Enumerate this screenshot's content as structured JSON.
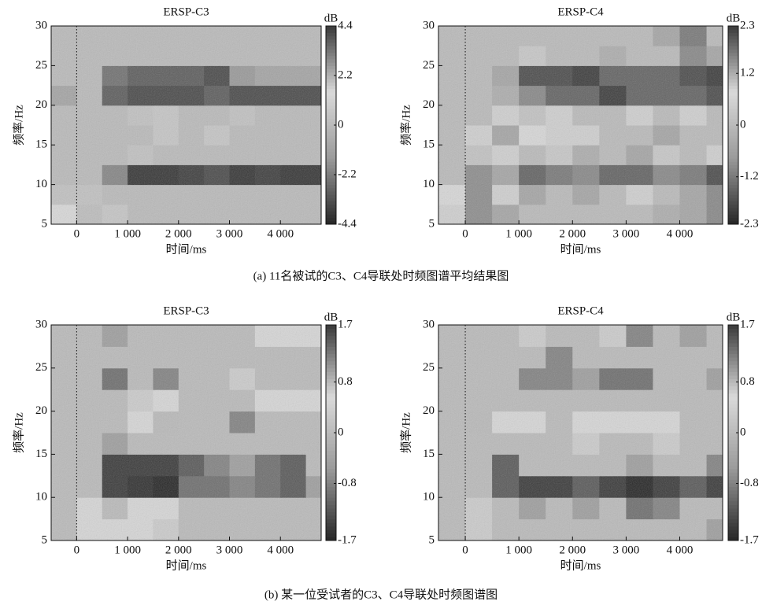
{
  "chart_data": [
    {
      "type": "heatmap",
      "title": "ERSP-C3",
      "xlabel": "时间/ms",
      "ylabel": "频率/Hz",
      "clabel": "dB",
      "xlim": [
        -500,
        4800
      ],
      "ylim": [
        5,
        30
      ],
      "xticks": [
        0,
        {
          "value": 1000,
          "label": "1 000"
        },
        {
          "value": 2000,
          "label": "2 000"
        },
        {
          "value": 3000,
          "label": "3 000"
        },
        {
          "value": 4000,
          "label": "4 000"
        }
      ],
      "yticks": [
        5,
        10,
        15,
        20,
        25,
        30
      ],
      "xbins": [
        -500,
        0,
        500,
        1000,
        1500,
        2000,
        2500,
        3000,
        3500,
        4000,
        4500,
        4800
      ],
      "ybins": [
        5,
        7.5,
        10,
        12.5,
        15,
        17.5,
        20,
        22.5,
        25,
        27.5,
        30
      ],
      "z": [
        [
          1.5,
          2,
          0.5,
          0,
          0,
          0,
          0,
          0,
          0,
          0,
          0
        ],
        [
          0.3,
          0.3,
          0,
          0,
          0,
          0,
          0,
          0,
          0,
          0,
          0
        ],
        [
          0,
          0,
          -2,
          -4,
          -4,
          -3.8,
          -3.5,
          -4,
          -3.8,
          -4,
          -4
        ],
        [
          0,
          0,
          0,
          0.3,
          0,
          0,
          0,
          0,
          0,
          0,
          0
        ],
        [
          0,
          0,
          0,
          0,
          0.5,
          0,
          0.5,
          0,
          0,
          0,
          0
        ],
        [
          0,
          0,
          0,
          0.3,
          0.5,
          0,
          0,
          0.3,
          0,
          0,
          0
        ],
        [
          -1,
          0,
          -3,
          -3.5,
          -3.5,
          -3.5,
          -3,
          -3.5,
          -3.5,
          -3.5,
          -3.5
        ],
        [
          0,
          0,
          -2.5,
          -3,
          -3,
          -3,
          -3.5,
          -1.5,
          -1,
          -1,
          -1
        ],
        [
          0,
          0,
          0,
          0,
          0,
          0,
          0,
          0,
          0,
          0,
          0
        ],
        [
          0,
          0,
          0,
          0,
          0,
          0,
          0,
          0,
          0,
          0,
          0
        ]
      ],
      "clim": [
        -4.4,
        4.4
      ],
      "cticks": [
        -4.4,
        -2.2,
        0,
        2.2,
        4.4
      ],
      "colormap": [
        "#262626",
        "#9a9a9a",
        "#dadada",
        "#3a3a3a"
      ],
      "marker_x": 0
    },
    {
      "type": "heatmap",
      "title": "ERSP-C4",
      "xlabel": "时间/ms",
      "ylabel": "频率/Hz",
      "clabel": "dB",
      "xlim": [
        -500,
        4800
      ],
      "ylim": [
        5,
        30
      ],
      "xticks": [
        0,
        {
          "value": 1000,
          "label": "1 000"
        },
        {
          "value": 2000,
          "label": "2 000"
        },
        {
          "value": 3000,
          "label": "3 000"
        },
        {
          "value": 4000,
          "label": "4 000"
        }
      ],
      "yticks": [
        5,
        10,
        15,
        20,
        25,
        30
      ],
      "xbins": [
        -500,
        0,
        500,
        1000,
        1500,
        2000,
        2500,
        3000,
        3500,
        4000,
        4500,
        4800
      ],
      "ybins": [
        5,
        7.5,
        10,
        12.5,
        15,
        17.5,
        20,
        22.5,
        25,
        27.5,
        30
      ],
      "z": [
        [
          0.5,
          1.5,
          -0.5,
          0,
          0,
          0,
          0,
          0,
          -0.3,
          -0.5,
          -1
        ],
        [
          0.8,
          1.5,
          0.5,
          -0.5,
          0,
          -0.5,
          0,
          0.5,
          0,
          -0.5,
          -1
        ],
        [
          0,
          1.5,
          -0.5,
          -1.5,
          -1.2,
          -1,
          -1.5,
          -1.5,
          -1,
          -1.2,
          -1.8
        ],
        [
          0,
          1,
          0.5,
          0,
          0.3,
          -0.3,
          0,
          -0.5,
          0.3,
          0,
          0.5
        ],
        [
          0,
          0.5,
          -0.5,
          0.8,
          0.5,
          0.5,
          0,
          0,
          -0.5,
          0,
          0
        ],
        [
          0,
          0,
          0.5,
          1,
          0.5,
          0,
          0,
          0.5,
          0,
          0.5,
          0
        ],
        [
          0,
          0,
          -0.3,
          -1,
          -1.5,
          -1.5,
          -2,
          -1.5,
          -1.5,
          -1.5,
          -1.8
        ],
        [
          0,
          0,
          -0.5,
          -1.8,
          -1.8,
          -2,
          -1.5,
          -1.5,
          -1.5,
          -1.8,
          -2
        ],
        [
          0,
          0,
          0,
          0.3,
          0,
          0,
          -0.3,
          0,
          0,
          -1,
          -0.5
        ],
        [
          0,
          0,
          0,
          0,
          0,
          0,
          0,
          0,
          -0.5,
          -1.2,
          0
        ]
      ],
      "clim": [
        -2.3,
        2.3
      ],
      "cticks": [
        -2.3,
        -1.2,
        0,
        1.2,
        2.3
      ],
      "colormap": [
        "#262626",
        "#9a9a9a",
        "#dadada",
        "#3a3a3a"
      ],
      "marker_x": 0
    },
    {
      "type": "heatmap",
      "title": "ERSP-C3",
      "xlabel": "时间/ms",
      "ylabel": "频率/Hz",
      "clabel": "dB",
      "xlim": [
        -500,
        4800
      ],
      "ylim": [
        5,
        30
      ],
      "xticks": [
        0,
        {
          "value": 1000,
          "label": "1 000"
        },
        {
          "value": 2000,
          "label": "2 000"
        },
        {
          "value": 3000,
          "label": "3 000"
        },
        {
          "value": 4000,
          "label": "4 000"
        }
      ],
      "yticks": [
        5,
        10,
        15,
        20,
        25,
        30
      ],
      "xbins": [
        -500,
        0,
        500,
        1000,
        1500,
        2000,
        2500,
        3000,
        3500,
        4000,
        4500,
        4800
      ],
      "ybins": [
        5,
        7.5,
        10,
        12.5,
        15,
        17.5,
        20,
        22.5,
        25,
        27.5,
        30
      ],
      "z": [
        [
          0,
          0.5,
          0.5,
          0.5,
          0.3,
          0,
          0,
          0,
          0,
          0,
          0
        ],
        [
          0,
          0.5,
          0,
          0.5,
          0.5,
          0,
          0,
          0,
          0,
          0,
          0
        ],
        [
          0,
          0,
          -1.5,
          -1.6,
          -1.7,
          -1,
          -1,
          -0.8,
          -1,
          -1.2,
          -0.5
        ],
        [
          0,
          0,
          -1.5,
          -1.5,
          -1.5,
          -1.2,
          -0.8,
          -0.5,
          -1,
          -1.2,
          0
        ],
        [
          0,
          0,
          -0.5,
          0,
          0,
          0,
          0,
          0,
          0,
          0,
          0
        ],
        [
          0,
          0,
          0,
          0.5,
          0.8,
          0,
          0,
          -0.8,
          0,
          0,
          0
        ],
        [
          0,
          0,
          0,
          0.3,
          0.5,
          0,
          0,
          0,
          0.5,
          0.5,
          0.5
        ],
        [
          0,
          0,
          -1,
          0,
          -0.8,
          0,
          0,
          0.3,
          0,
          0,
          0
        ],
        [
          0,
          0,
          0,
          0,
          0,
          0,
          0,
          0,
          0,
          0,
          0
        ],
        [
          0,
          0,
          -0.5,
          0,
          0,
          0,
          0,
          0,
          0.5,
          0.5,
          0.5
        ]
      ],
      "clim": [
        -1.7,
        1.7
      ],
      "cticks": [
        -1.7,
        -0.8,
        0,
        0.8,
        1.7
      ],
      "colormap": [
        "#262626",
        "#9a9a9a",
        "#dadada",
        "#3a3a3a"
      ],
      "marker_x": 0
    },
    {
      "type": "heatmap",
      "title": "ERSP-C4",
      "xlabel": "时间/ms",
      "ylabel": "频率/Hz",
      "clabel": "dB",
      "xlim": [
        -500,
        4800
      ],
      "ylim": [
        5,
        30
      ],
      "xticks": [
        0,
        {
          "value": 1000,
          "label": "1 000"
        },
        {
          "value": 2000,
          "label": "2 000"
        },
        {
          "value": 3000,
          "label": "3 000"
        },
        {
          "value": 4000,
          "label": "4 000"
        }
      ],
      "yticks": [
        5,
        10,
        15,
        20,
        25,
        30
      ],
      "xbins": [
        -500,
        0,
        500,
        1000,
        1500,
        2000,
        2500,
        3000,
        3500,
        4000,
        4500,
        4800
      ],
      "ybins": [
        5,
        7.5,
        10,
        12.5,
        15,
        17.5,
        20,
        22.5,
        25,
        27.5,
        30
      ],
      "z": [
        [
          0,
          0.3,
          0,
          0,
          0,
          0,
          0,
          0,
          0,
          0,
          -0.5
        ],
        [
          0,
          0.3,
          0,
          -0.5,
          0,
          -0.5,
          0,
          -1,
          -0.8,
          0,
          0
        ],
        [
          0,
          0,
          -1.2,
          -1.5,
          -1.5,
          -1.2,
          -1.5,
          -1.7,
          -1.5,
          -1.2,
          -1.5
        ],
        [
          0,
          0,
          -1.2,
          0,
          0,
          0,
          0,
          -0.5,
          0,
          0,
          -0.8
        ],
        [
          0,
          0,
          0,
          0,
          0,
          0.3,
          0,
          0,
          0.3,
          0,
          0
        ],
        [
          0,
          0.8,
          0.5,
          0.5,
          0,
          0.5,
          0.5,
          0.5,
          0.5,
          0,
          0
        ],
        [
          0,
          0,
          0,
          0,
          0,
          0,
          0,
          0,
          0,
          0,
          0
        ],
        [
          0,
          0,
          0,
          -0.8,
          -0.8,
          -0.5,
          -1,
          -1,
          0,
          0,
          -0.5
        ],
        [
          0,
          0,
          0,
          0,
          -0.8,
          0,
          0,
          0,
          0,
          0,
          0
        ],
        [
          0,
          0,
          0,
          0.3,
          0,
          0,
          0.3,
          -0.8,
          0,
          -0.5,
          0
        ]
      ],
      "clim": [
        -1.7,
        1.7
      ],
      "cticks": [
        -1.7,
        -0.8,
        0,
        0.8,
        1.7
      ],
      "colormap": [
        "#262626",
        "#9a9a9a",
        "#dadada",
        "#3a3a3a"
      ],
      "marker_x": 0
    }
  ],
  "captions": [
    "(a) 11名被试的C3、C4导联处时频图谱平均结果图",
    "(b) 某一位受试者的C3、C4导联处时频图谱图"
  ]
}
